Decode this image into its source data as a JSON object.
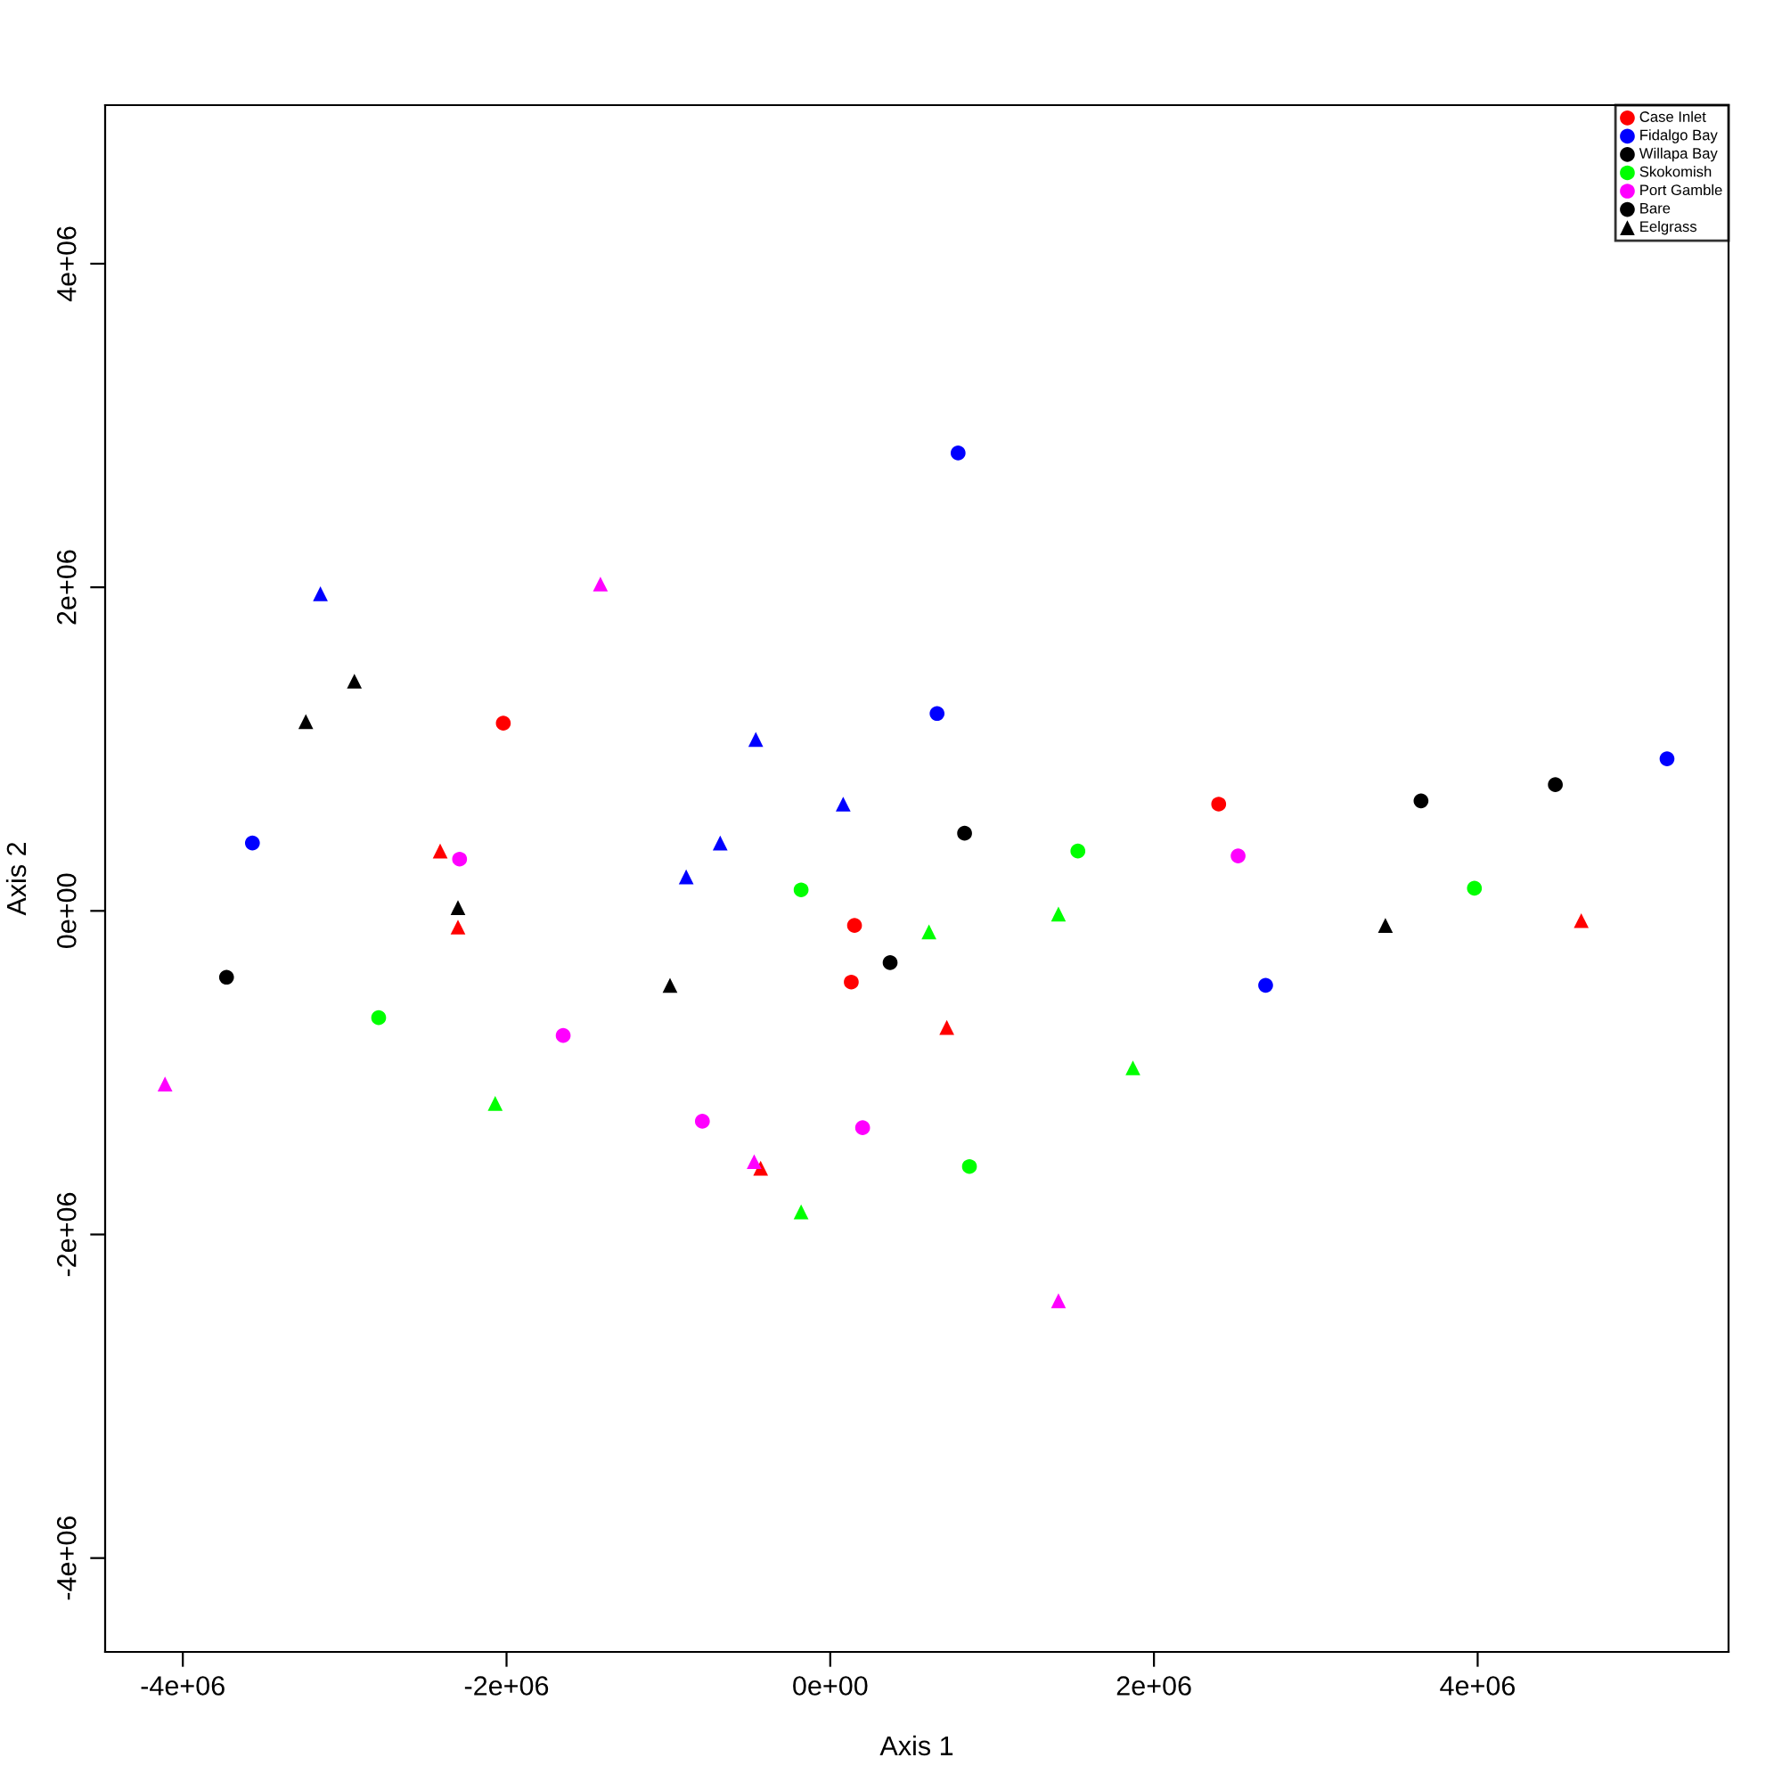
{
  "chart_data": {
    "type": "scatter",
    "xlabel": "Axis 1",
    "ylabel": "Axis 2",
    "xlim": [
      -4480000,
      5550000
    ],
    "ylim": [
      -4580000,
      4980000
    ],
    "xticks": [
      {
        "value": -4000000,
        "label": "-4e+06"
      },
      {
        "value": -2000000,
        "label": "-2e+06"
      },
      {
        "value": 0,
        "label": "0e+00"
      },
      {
        "value": 2000000,
        "label": "2e+06"
      },
      {
        "value": 4000000,
        "label": "4e+06"
      }
    ],
    "yticks": [
      {
        "value": -4000000,
        "label": "-4e+06"
      },
      {
        "value": -2000000,
        "label": "-2e+06"
      },
      {
        "value": 0,
        "label": "0e+00"
      },
      {
        "value": 2000000,
        "label": "2e+06"
      },
      {
        "value": 4000000,
        "label": "4e+06"
      }
    ],
    "grid": false,
    "legend": "top right",
    "series": [
      {
        "name": "Case Inlet",
        "color": "#ff0000",
        "marker": "circle",
        "x": [
          -2020000,
          2400000,
          150000,
          130000
        ],
        "values": [
          1160000,
          660000,
          -90000,
          -440000
        ]
      },
      {
        "name": "Fidalgo Bay",
        "color": "#0000ff",
        "marker": "circle",
        "x": [
          -3570000,
          790000,
          660000,
          2690000,
          5170000
        ],
        "values": [
          420000,
          2830000,
          1220000,
          -460000,
          940000
        ]
      },
      {
        "name": "Willapa Bay",
        "color": "#000000",
        "marker": "circle",
        "x": [
          -3730000,
          370000,
          830000,
          3650000,
          4480000
        ],
        "values": [
          -410000,
          -320000,
          480000,
          680000,
          780000
        ]
      },
      {
        "name": "Skokomish",
        "color": "#00ff00",
        "marker": "circle",
        "x": [
          -2790000,
          -180000,
          1530000,
          3980000,
          860000
        ],
        "values": [
          -660000,
          130000,
          370000,
          140000,
          -1580000
        ]
      },
      {
        "name": "Port Gamble",
        "color": "#ff00ff",
        "marker": "circle",
        "x": [
          -2290000,
          -1650000,
          -790000,
          200000,
          2520000
        ],
        "values": [
          320000,
          -770000,
          -1300000,
          -1340000,
          340000
        ]
      },
      {
        "name": "Bare",
        "color": "#000000",
        "marker": "circle"
      },
      {
        "name": "Eelgrass",
        "color": "#000000",
        "marker": "triangle",
        "x": [
          -2410000,
          -2300000,
          720000,
          -430000,
          4640000,
          -3150000,
          -460000,
          80000,
          -680000,
          -890000,
          -2940000,
          -3240000,
          -2300000,
          -990000,
          3430000,
          -2070000,
          -180000,
          610000,
          1410000,
          1870000,
          -4110000,
          -1420000,
          -470000,
          1410000
        ],
        "values": [
          370000,
          -100000,
          -720000,
          -1590000,
          -60000,
          1960000,
          1060000,
          660000,
          420000,
          210000,
          1420000,
          1170000,
          20000,
          -460000,
          -90000,
          -1190000,
          -1860000,
          -130000,
          -20000,
          -970000,
          -1070000,
          2020000,
          -1550000,
          -2410000
        ],
        "colors": [
          "#ff0000",
          "#ff0000",
          "#ff0000",
          "#ff0000",
          "#ff0000",
          "#0000ff",
          "#0000ff",
          "#0000ff",
          "#0000ff",
          "#0000ff",
          "#000000",
          "#000000",
          "#000000",
          "#000000",
          "#000000",
          "#00ff00",
          "#00ff00",
          "#00ff00",
          "#00ff00",
          "#00ff00",
          "#ff00ff",
          "#ff00ff",
          "#ff00ff",
          "#ff00ff"
        ]
      }
    ]
  }
}
